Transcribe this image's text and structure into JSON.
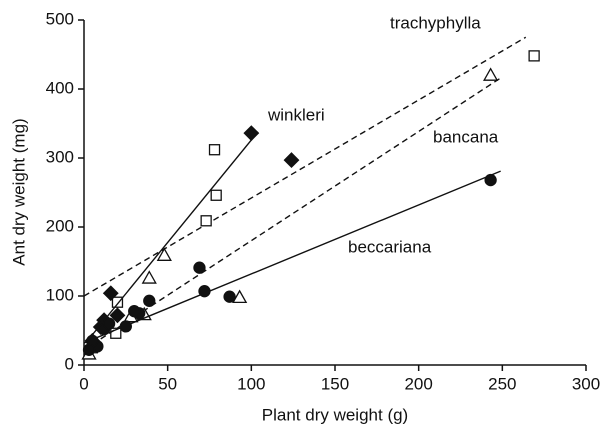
{
  "chart_data": {
    "type": "scatter",
    "xlabel": "Plant dry weight (g)",
    "ylabel": "Ant dry weight (mg)",
    "xlim": [
      0,
      300
    ],
    "ylim": [
      0,
      500
    ],
    "xticks": [
      0,
      50,
      100,
      150,
      200,
      250,
      300
    ],
    "yticks": [
      0,
      100,
      200,
      300,
      400,
      500
    ],
    "color": "#111111",
    "series": [
      {
        "name": "trachyphylla",
        "marker": "square",
        "filled": false,
        "x": [
          269,
          78,
          79,
          73,
          20,
          19,
          5
        ],
        "y": [
          448,
          312,
          246,
          209,
          91,
          46,
          25
        ],
        "line": {
          "x": [
            0,
            264
          ],
          "y": [
            100,
            475
          ],
          "dashed": true
        }
      },
      {
        "name": "winkleri",
        "marker": "diamond",
        "filled": true,
        "x": [
          100,
          124,
          16,
          12,
          20,
          10,
          5
        ],
        "y": [
          336,
          297,
          104,
          65,
          72,
          55,
          35
        ],
        "line": {
          "x": [
            1,
            104
          ],
          "y": [
            32,
            338
          ],
          "dashed": false
        }
      },
      {
        "name": "bancana",
        "marker": "triangle",
        "filled": false,
        "x": [
          243,
          48,
          39,
          36,
          93,
          3,
          28
        ],
        "y": [
          420,
          159,
          126,
          73,
          98,
          16,
          70
        ],
        "line": {
          "x": [
            0,
            249
          ],
          "y": [
            22,
            416
          ],
          "dashed": true
        }
      },
      {
        "name": "beccariana",
        "marker": "circle",
        "filled": true,
        "x": [
          243,
          69,
          72,
          87,
          39,
          33,
          25,
          12,
          8,
          5,
          3,
          15,
          30
        ],
        "y": [
          268,
          141,
          107,
          99,
          93,
          75,
          56,
          52,
          27,
          35,
          22,
          60,
          78
        ],
        "line": {
          "x": [
            0,
            249
          ],
          "y": [
            32,
            281
          ],
          "dashed": false
        }
      }
    ]
  }
}
